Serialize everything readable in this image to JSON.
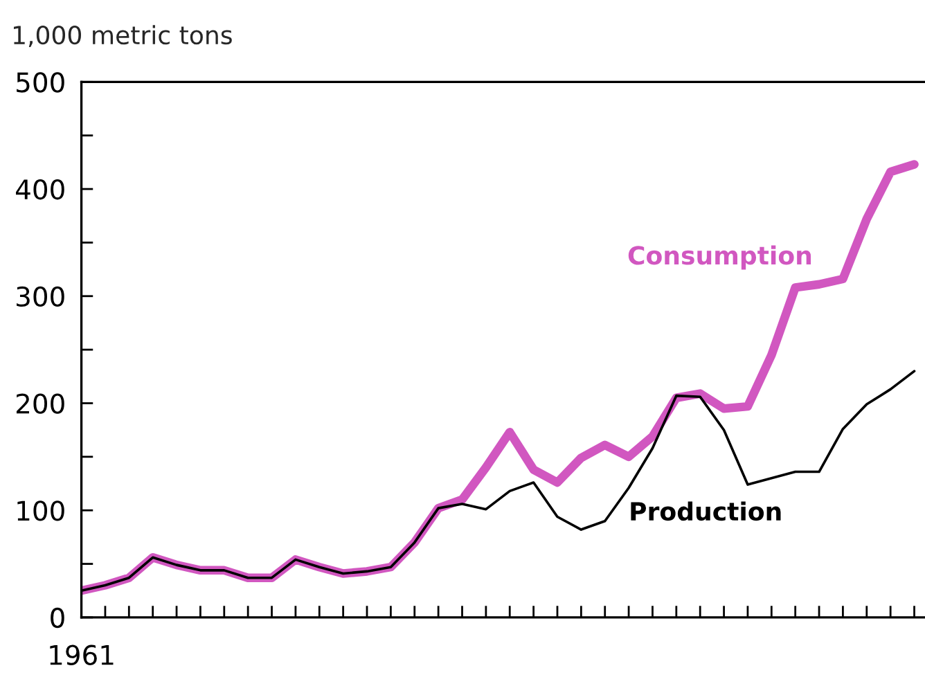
{
  "chart_data": {
    "type": "line",
    "title": "1,000 metric tons",
    "categories": [
      "1961",
      null,
      null,
      null,
      null,
      null,
      null,
      null,
      null,
      null,
      null,
      null,
      null,
      null,
      null,
      null,
      null,
      null,
      null,
      null,
      null,
      null,
      null,
      null,
      null,
      null,
      null,
      null,
      null,
      null,
      null,
      null,
      null,
      null,
      null,
      null
    ],
    "series": [
      {
        "name": "Consumption",
        "color": "#d157c0",
        "values": [
          25,
          30,
          37,
          56,
          49,
          44,
          44,
          37,
          37,
          54,
          47,
          41,
          43,
          47,
          70,
          102,
          110,
          140,
          173,
          138,
          126,
          149,
          161,
          150,
          169,
          205,
          209,
          195,
          197,
          245,
          308,
          311,
          316,
          372,
          416,
          423
        ]
      },
      {
        "name": "Production",
        "color": "#000000",
        "values": [
          25,
          30,
          37,
          56,
          49,
          44,
          44,
          37,
          37,
          54,
          47,
          41,
          43,
          47,
          70,
          102,
          106,
          101,
          118,
          126,
          94,
          82,
          90,
          121,
          158,
          207,
          206,
          175,
          124,
          130,
          136,
          136,
          176,
          199,
          213,
          230
        ]
      }
    ],
    "ylim": [
      0,
      500
    ],
    "yticks": [
      0,
      {
        "value": 50,
        "label": null
      },
      100,
      {
        "value": 150,
        "label": null
      },
      200,
      {
        "value": 250,
        "label": null
      },
      300,
      {
        "value": 350,
        "label": null
      },
      400,
      {
        "value": 450,
        "label": null
      },
      500
    ],
    "grid": false,
    "legend": false,
    "marker": "none",
    "line_style": "solid"
  }
}
